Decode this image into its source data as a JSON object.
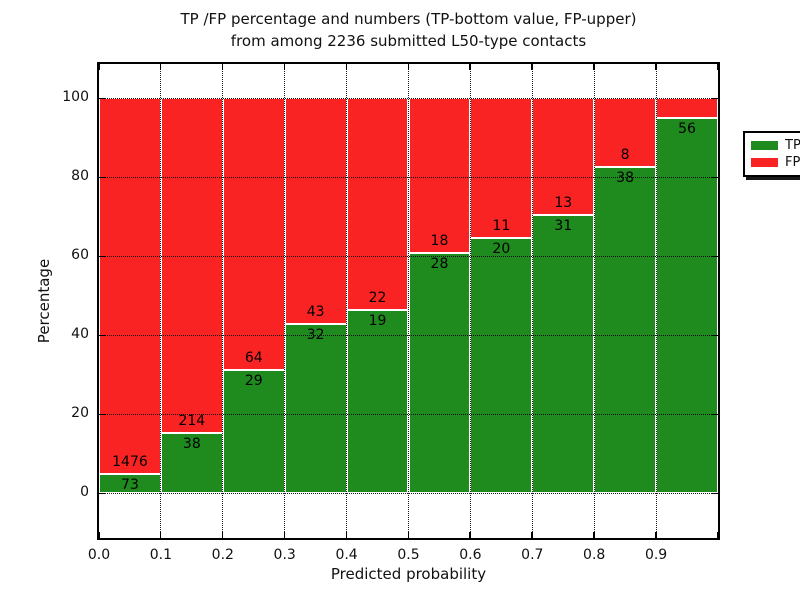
{
  "title": {
    "line1": "TP /FP percentage and numbers (TP-bottom value, FP-upper)",
    "line2": "from among 2236 submitted L50-type contacts"
  },
  "axes": {
    "xlabel": "Predicted probability",
    "ylabel": "Percentage",
    "xtick_labels": [
      "0.0",
      "0.1",
      "0.2",
      "0.3",
      "0.4",
      "0.5",
      "0.6",
      "0.7",
      "0.8",
      "0.9"
    ],
    "ytick_labels": [
      "0",
      "20",
      "40",
      "60",
      "80",
      "100"
    ],
    "ytick_values": [
      0,
      20,
      40,
      60,
      80,
      100
    ]
  },
  "legend": {
    "items": [
      {
        "label": "TP",
        "color": "#1f8b1f"
      },
      {
        "label": "FP",
        "color": "#fa2323"
      }
    ],
    "position": "upper right"
  },
  "colors": {
    "tp": "#1f8b1f",
    "fp": "#fa2323",
    "grid": "#000000",
    "frame": "#000000",
    "background": "#ffffff",
    "text": "#111111"
  },
  "chart_data": {
    "type": "bar",
    "stacked": true,
    "normalized_to_percent": true,
    "title": "TP /FP percentage and numbers (TP-bottom value, FP-upper) from among 2236 submitted L50-type contacts",
    "xlabel": "Predicted probability",
    "ylabel": "Percentage",
    "categories": [
      "0.0-0.1",
      "0.1-0.2",
      "0.2-0.3",
      "0.3-0.4",
      "0.4-0.5",
      "0.5-0.6",
      "0.6-0.7",
      "0.7-0.8",
      "0.8-0.9",
      "0.9-1.0"
    ],
    "series": [
      {
        "name": "TP",
        "counts": [
          73,
          38,
          29,
          32,
          19,
          28,
          20,
          31,
          38,
          56
        ]
      },
      {
        "name": "FP",
        "counts": [
          1476,
          214,
          64,
          43,
          22,
          18,
          11,
          13,
          8,
          null
        ]
      }
    ],
    "tp_percent": [
      4.713,
      15.079,
      31.183,
      42.667,
      46.341,
      60.87,
      64.516,
      70.455,
      82.609,
      94.915
    ],
    "bar_value_labels": "TP count shown just below segment boundary, FP count just above it",
    "hidden_labels": [
      "FP count for 0.9-1.0 bin is hidden behind the legend box"
    ],
    "xlim": [
      0.0,
      1.0
    ],
    "ylim": [
      -11.4,
      109.6
    ],
    "grid": true,
    "grid_style": "dotted",
    "legend_position": "upper right"
  }
}
